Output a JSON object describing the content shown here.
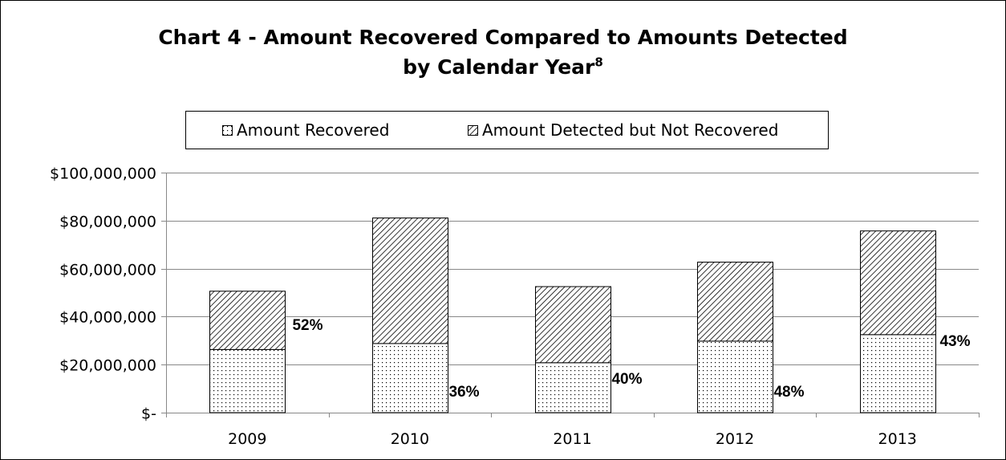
{
  "chart_data": {
    "type": "bar",
    "stacked": true,
    "title": "Chart 4 - Amount Recovered Compared to Amounts Detected",
    "title_line2": "by Calendar Year",
    "title_superscript": "8",
    "categories": [
      "2009",
      "2010",
      "2011",
      "2012",
      "2013"
    ],
    "series": [
      {
        "name": "Amount Recovered",
        "pattern": "dots",
        "values": [
          26300000,
          28800000,
          20800000,
          29800000,
          32500000
        ]
      },
      {
        "name": "Amount Detected but Not Recovered",
        "pattern": "diagonal-hatch",
        "values": [
          24300000,
          52300000,
          31700000,
          32900000,
          43200000
        ]
      }
    ],
    "percent_labels": [
      "52%",
      "36%",
      "40%",
      "48%",
      "43%"
    ],
    "y_ticks": [
      0,
      20000000,
      40000000,
      60000000,
      80000000,
      100000000
    ],
    "y_tick_labels": [
      "$-",
      "$20,000,000",
      "$40,000,000",
      "$60,000,000",
      "$80,000,000",
      "$100,000,000"
    ],
    "ylim": [
      0,
      100000000
    ],
    "grid": true,
    "legend_position": "top"
  },
  "colors": {
    "fill": "#ffffff",
    "ink": "#000000",
    "grid": "#888888"
  }
}
